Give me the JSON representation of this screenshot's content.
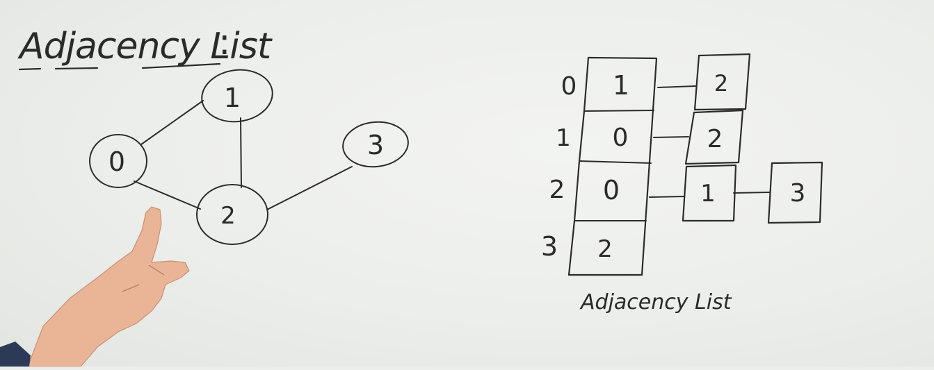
{
  "title": "Adjacency List",
  "title_colon": ":",
  "caption": "Adjacency List",
  "colors": {
    "board": "#eceeec",
    "ink": "#2b2b2b",
    "skin": "#e9b596"
  },
  "graph": {
    "nodes": [
      {
        "id": "0",
        "label": "0"
      },
      {
        "id": "1",
        "label": "1"
      },
      {
        "id": "2",
        "label": "2"
      },
      {
        "id": "3",
        "label": "3"
      }
    ],
    "edges": [
      [
        "0",
        "1"
      ],
      [
        "0",
        "2"
      ],
      [
        "1",
        "2"
      ],
      [
        "2",
        "3"
      ]
    ]
  },
  "adjacency_list": [
    {
      "index": "0",
      "head": "1",
      "nodes": [
        "2"
      ]
    },
    {
      "index": "1",
      "head": "0",
      "nodes": [
        "2"
      ]
    },
    {
      "index": "2",
      "head": "0",
      "nodes": [
        "1",
        "3"
      ]
    },
    {
      "index": "3",
      "head": "2",
      "nodes": []
    }
  ],
  "icons": {
    "hand": "pointing-hand-icon"
  }
}
